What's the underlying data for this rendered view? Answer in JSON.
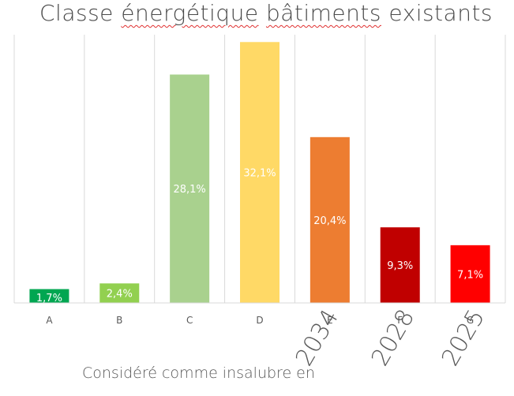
{
  "title_parts": {
    "before": "Classe ",
    "word1": "énergétique",
    "word2": "bâtiments",
    "after": " existants"
  },
  "footnote": "Considéré comme insalubre en",
  "years": [
    "2034",
    "2028",
    "2025"
  ],
  "chart_data": {
    "type": "bar",
    "title": "Classe énergétique bâtiments existants",
    "categories": [
      "A",
      "B",
      "C",
      "D",
      "E",
      "F",
      "G"
    ],
    "values": [
      1.7,
      2.4,
      28.1,
      32.1,
      20.4,
      9.3,
      7.1
    ],
    "data_labels": [
      "1,7%",
      "2,4%",
      "28,1%",
      "32,1%",
      "20,4%",
      "9,3%",
      "7,1%"
    ],
    "colors": [
      "#00a651",
      "#92d050",
      "#a9d18e",
      "#ffd966",
      "#ed7d31",
      "#c00000",
      "#ff0000"
    ],
    "label_color": "#ffffff",
    "ylim": [
      0,
      33
    ],
    "grid": "vertical",
    "legend": "none"
  }
}
